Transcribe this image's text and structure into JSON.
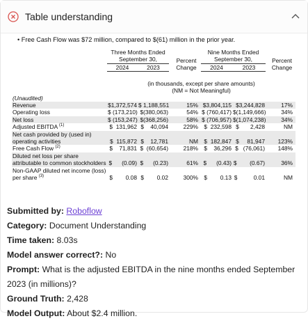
{
  "header": {
    "title": "Table understanding"
  },
  "bullet": "Free Cash Flow was $72 million, compared to $(61) million in the prior year.",
  "table": {
    "period_headers": [
      "Three Months Ended",
      "Nine Months Ended"
    ],
    "date_headers": [
      "September 30,",
      "September 30,"
    ],
    "change_headers": [
      "Percent Change",
      "Percent Change"
    ],
    "years": [
      "2024",
      "2023",
      "2024",
      "2023"
    ],
    "notes": [
      "(in thousands, except per share amounts)",
      "(NM = Not Meaningful)"
    ],
    "unaudited": "(Unaudited)",
    "rows": [
      {
        "label": "Revenue",
        "cells": [
          "$1,372,574",
          "$ 1,188,551",
          "15%",
          "$3,804,115",
          "$3,244,828",
          "17%"
        ]
      },
      {
        "label": "Operating loss",
        "cells": [
          "$ (173,210)",
          "$(380,063)",
          "54%",
          "$ (760,417)",
          "$(1,149,666)",
          "34%"
        ]
      },
      {
        "label": "Net loss",
        "cells": [
          "$ (153,247)",
          "$(368,256)",
          "58%",
          "$ (706,957)",
          "$(1,074,238)",
          "34%"
        ]
      },
      {
        "label": "Adjusted EBITDA",
        "footnote": "(1)",
        "cells": [
          "$  131,962",
          "$    40,094",
          "229%",
          "$  232,598",
          "$       2,428",
          "NM"
        ]
      },
      {
        "label": "Net cash provided by (used in) operating activities",
        "cells": [
          "$  115,872",
          "$    12,781",
          "NM",
          "$  182,847",
          "$     81,947",
          "123%"
        ]
      },
      {
        "label": "Free Cash Flow",
        "footnote": "(2)",
        "cells": [
          "$    71,831",
          "$  (60,654)",
          "218%",
          "$    36,296",
          "$   (76,061)",
          "148%"
        ]
      },
      {
        "label": "Diluted net loss per share attributable to common stockholders",
        "cells": [
          "$      (0.09)",
          "$      (0.23)",
          "61%",
          "$      (0.43)",
          "$        (0.67)",
          "36%"
        ]
      },
      {
        "label": "Non-GAAP diluted net income (loss) per share",
        "footnote": "(3)",
        "cells": [
          "$        0.08",
          "$        0.02",
          "300%",
          "$        0.13",
          "$          0.01",
          "NM"
        ]
      }
    ]
  },
  "details": [
    {
      "label": "Submitted by:",
      "value": "Roboflow",
      "link": true
    },
    {
      "label": "Category:",
      "value": "Document Understanding"
    },
    {
      "label": "Time taken:",
      "value": "8.03s"
    },
    {
      "label": "Model answer correct?:",
      "value": "No"
    },
    {
      "label": "Prompt:",
      "value": "What is the adjusted EBITDA in the nine months ended September 2023 (in millions)?"
    },
    {
      "label": "Ground Truth:",
      "value": "2,428"
    },
    {
      "label": "Model Output:",
      "value": "About $2.4 million."
    }
  ]
}
